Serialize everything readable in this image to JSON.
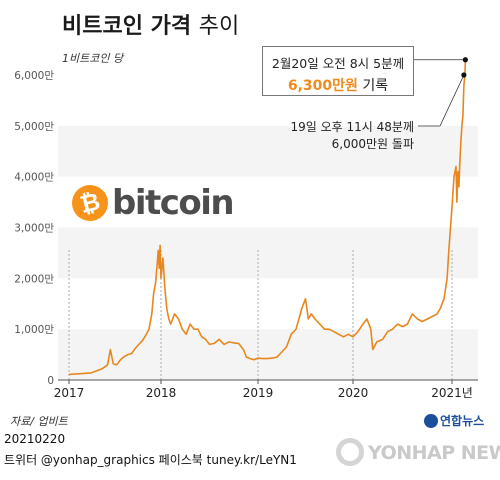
{
  "header": {
    "title_main": "비트코인 가격",
    "title_light": "추이",
    "unit": "1비트코인 당"
  },
  "logo": {
    "coin_symbol": "₿",
    "word": "bitcoin"
  },
  "callouts": {
    "peak_line1": "2월20일  오전 8시 5분께",
    "peak_value": "6,300만원",
    "peak_suffix": " 기록",
    "breach_line1": "19일  오후 11시 48분께",
    "breach_line2": "6,000만원 돌파"
  },
  "footer": {
    "source": "자료/ 업비트",
    "date": "20210220",
    "credit": "트위터 @yonhap_graphics  페이스북 tuney.kr/LeYN1",
    "brand_small": "연합뉴스",
    "watermark": "YONHAP NEWS"
  },
  "colors": {
    "line": "#e8871e",
    "band": "#f4f4f4",
    "accent": "#f08a1c",
    "coin": "#f7931a",
    "brand": "#1b4f9c"
  },
  "chart_data": {
    "type": "line",
    "unit": "만원",
    "x_tick_labels": [
      "2017",
      "2018",
      "2019",
      "2020",
      "2021년"
    ],
    "y_tick_labels": [
      "0",
      "1,000만",
      "2,000만",
      "3,000만",
      "4,000만",
      "5,000만",
      "6,000만"
    ],
    "ylim": [
      0,
      6000
    ],
    "xlim": [
      2017.0,
      2021.15
    ],
    "grid": "alternating horizontal bands",
    "series": [
      {
        "x": [
          2017.0,
          2017.08,
          2017.16,
          2017.24,
          2017.3,
          2017.36,
          2017.42,
          2017.45,
          2017.48,
          2017.52,
          2017.56,
          2017.6,
          2017.64,
          2017.68,
          2017.72,
          2017.76,
          2017.8,
          2017.84,
          2017.87,
          2017.9,
          2017.92,
          2017.94,
          2017.96,
          2017.97,
          2017.98,
          2017.99,
          2018.0,
          2018.02,
          2018.04,
          2018.06,
          2018.08,
          2018.1,
          2018.14,
          2018.18,
          2018.22,
          2018.26,
          2018.3,
          2018.34,
          2018.38,
          2018.42,
          2018.46,
          2018.5,
          2018.55,
          2018.6,
          2018.65,
          2018.7,
          2018.75,
          2018.8,
          2018.85,
          2018.88,
          2018.92,
          2018.96,
          2019.0,
          2019.05,
          2019.1,
          2019.15,
          2019.2,
          2019.25,
          2019.3,
          2019.35,
          2019.4,
          2019.43,
          2019.46,
          2019.5,
          2019.53,
          2019.56,
          2019.6,
          2019.65,
          2019.7,
          2019.75,
          2019.8,
          2019.85,
          2019.9,
          2019.95,
          2020.0,
          2020.05,
          2020.1,
          2020.14,
          2020.18,
          2020.2,
          2020.24,
          2020.3,
          2020.35,
          2020.4,
          2020.45,
          2020.5,
          2020.55,
          2020.6,
          2020.65,
          2020.7,
          2020.75,
          2020.8,
          2020.85,
          2020.88,
          2020.92,
          2020.95,
          2020.97,
          2021.0,
          2021.02,
          2021.04,
          2021.05,
          2021.06,
          2021.07,
          2021.08,
          2021.09,
          2021.1,
          2021.11,
          2021.12,
          2021.13,
          2021.135
        ],
        "values": [
          110,
          120,
          130,
          140,
          180,
          220,
          300,
          600,
          320,
          300,
          400,
          460,
          500,
          520,
          620,
          700,
          780,
          900,
          1000,
          1300,
          1700,
          1900,
          2300,
          2550,
          2200,
          2650,
          2000,
          2400,
          1800,
          1400,
          1200,
          1100,
          1300,
          1200,
          1000,
          900,
          1100,
          1000,
          1000,
          850,
          800,
          700,
          720,
          800,
          700,
          750,
          730,
          720,
          600,
          450,
          420,
          400,
          430,
          420,
          420,
          430,
          450,
          550,
          650,
          900,
          1000,
          1200,
          1400,
          1600,
          1200,
          1300,
          1200,
          1100,
          1000,
          1000,
          950,
          900,
          850,
          900,
          850,
          950,
          1100,
          1200,
          1000,
          600,
          750,
          800,
          950,
          1000,
          1100,
          1050,
          1100,
          1300,
          1200,
          1150,
          1200,
          1250,
          1300,
          1400,
          1600,
          2000,
          2600,
          3400,
          4000,
          4200,
          3500,
          4100,
          3800,
          4300,
          4700,
          5000,
          5200,
          5800,
          6000,
          6300
        ]
      }
    ],
    "annotations": [
      {
        "x": 2021.135,
        "y": 6300,
        "label": "2월20일  오전 8시 5분께 6,300만원 기록"
      },
      {
        "x": 2021.12,
        "y": 6000,
        "label": "19일  오후 11시 48분께 6,000만원 돌파"
      }
    ]
  }
}
